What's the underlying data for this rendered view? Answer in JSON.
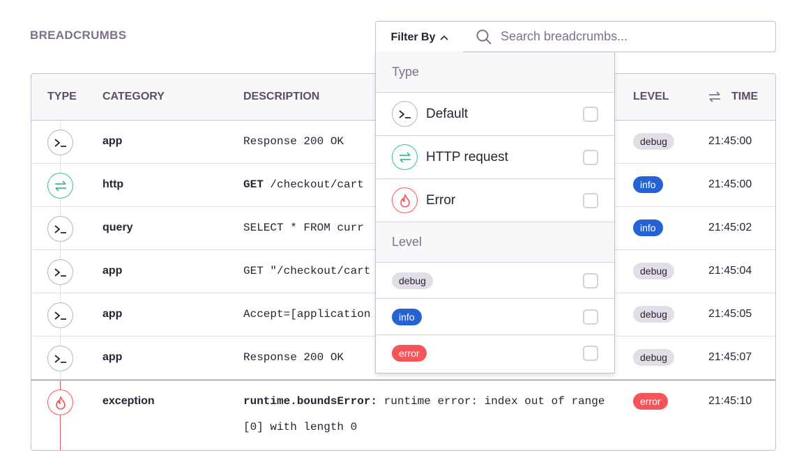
{
  "title": "BREADCRUMBS",
  "filter": {
    "label": "Filter By",
    "search_placeholder": "Search breadcrumbs..."
  },
  "columns": {
    "type": "TYPE",
    "category": "CATEGORY",
    "description": "DESCRIPTION",
    "level": "LEVEL",
    "time": "TIME"
  },
  "rows": [
    {
      "type": "default",
      "category": "app",
      "desc_bold": "",
      "description": "Response 200 OK",
      "level": "debug",
      "time": "21:45:00"
    },
    {
      "type": "http",
      "category": "http",
      "desc_bold": "GET",
      "description": " /checkout/cart",
      "level": "info",
      "time": "21:45:00"
    },
    {
      "type": "default",
      "category": "query",
      "desc_bold": "",
      "description": "SELECT * FROM curr",
      "level": "info",
      "time": "21:45:02"
    },
    {
      "type": "default",
      "category": "app",
      "desc_bold": "",
      "description": "GET \"/checkout/cart",
      "level": "debug",
      "time": "21:45:04"
    },
    {
      "type": "default",
      "category": "app",
      "desc_bold": "",
      "description": "Accept=[application",
      "level": "debug",
      "time": "21:45:05"
    },
    {
      "type": "default",
      "category": "app",
      "desc_bold": "",
      "description": "Response 200 OK",
      "level": "debug",
      "time": "21:45:07"
    },
    {
      "type": "error",
      "category": "exception",
      "desc_bold": "runtime.boundsError:",
      "description": " runtime error: index out of range [0] with length 0",
      "level": "error",
      "time": "21:45:10"
    }
  ],
  "dropdown": {
    "type_header": "Type",
    "types": [
      {
        "label": "Default",
        "icon": "terminal-icon",
        "checked": false
      },
      {
        "label": "HTTP request",
        "icon": "arrows-swap-icon",
        "checked": false
      },
      {
        "label": "Error",
        "icon": "fire-icon",
        "checked": false
      }
    ],
    "level_header": "Level",
    "levels": [
      {
        "label": "debug",
        "checked": false
      },
      {
        "label": "info",
        "checked": false
      },
      {
        "label": "error",
        "checked": false
      }
    ]
  },
  "colors": {
    "debug": "#e2dee6",
    "info": "#2562d4",
    "error": "#f55459",
    "http": "#3cbb93"
  }
}
